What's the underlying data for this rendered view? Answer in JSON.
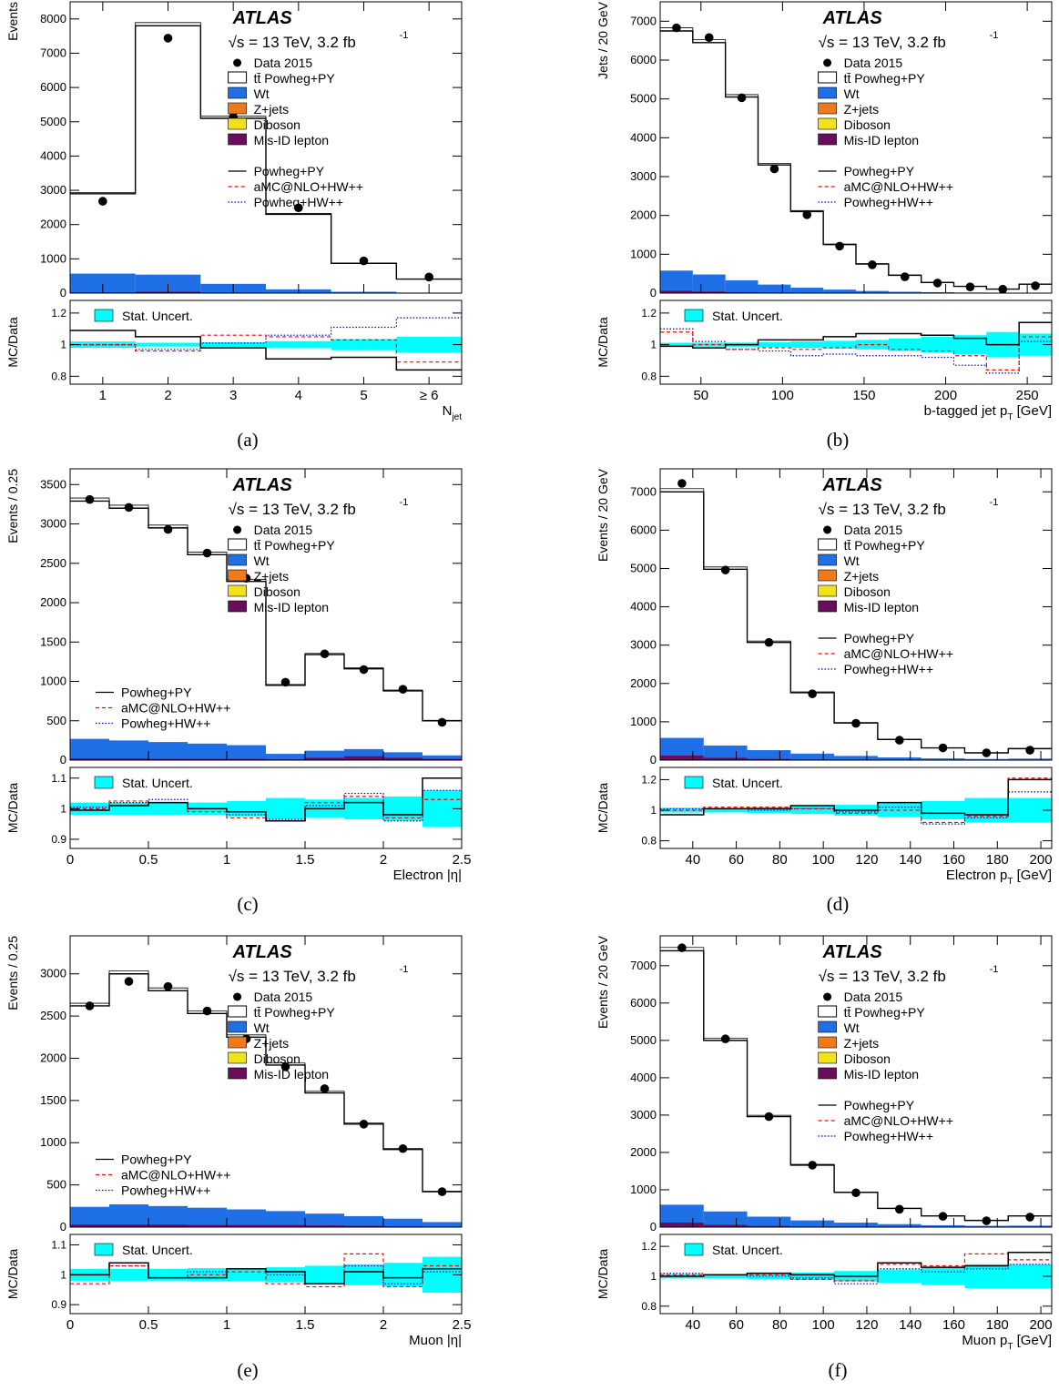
{
  "figure": {
    "atlas_label": "ATLAS",
    "energy_label": "√s = 13 TeV, 3.2 fb",
    "lumi_superscript": "-1",
    "legend": {
      "data": "Data 2015",
      "ttbar": "tt̄ Powheg+PY",
      "wt": "Wt",
      "zjets": "Z+jets",
      "diboson": "Diboson",
      "misid": "Mis-ID lepton",
      "powheg_py": "Powheg+PY",
      "amcnlo": "aMC@NLO+HW++",
      "powheg_hw": "Powheg+HW++",
      "stat": "Stat. Uncert."
    },
    "ratio_ylabel": "MC/Data",
    "colors": {
      "wt": "#1f6fe6",
      "zjets": "#f07a1a",
      "diboson": "#f2e21a",
      "misid": "#6a0d5a",
      "stat": "#00ffff",
      "amcnlo": "#ff0000",
      "powheg_hw": "#0000dd"
    }
  },
  "chart_data": [
    {
      "type": "bar",
      "panel": "a",
      "caption": "(a)",
      "ylabel": "Events",
      "xlabel_main": "N",
      "xlabel_sub": "jet",
      "edges": [
        0.5,
        1.5,
        2.5,
        3.5,
        4.5,
        5.5,
        6.5
      ],
      "xlim": [
        0.5,
        6.5
      ],
      "ylim": [
        0,
        8500
      ],
      "yticks": [
        0,
        1000,
        2000,
        3000,
        4000,
        5000,
        6000,
        7000,
        8000
      ],
      "xticks": [
        {
          "v": 1,
          "l": "1"
        },
        {
          "v": 2,
          "l": "2"
        },
        {
          "v": 3,
          "l": "3"
        },
        {
          "v": 4,
          "l": "4"
        },
        {
          "v": 5,
          "l": "5"
        },
        {
          "v": 6,
          "l": "≥ 6"
        }
      ],
      "data": [
        2680,
        7440,
        5140,
        2490,
        940,
        470
      ],
      "ttbar": [
        2900,
        7800,
        5100,
        2300,
        870,
        410
      ],
      "wt": [
        570,
        540,
        270,
        110,
        40,
        15
      ],
      "misid": [
        20,
        40,
        15,
        10,
        4,
        2
      ],
      "ratio_ylim": [
        0.75,
        1.28
      ],
      "ratio_yticks": [
        0.8,
        1,
        1.2
      ],
      "ratio_powheg_py": [
        1.09,
        1.05,
        0.98,
        0.91,
        0.92,
        0.84
      ],
      "ratio_amcnlo": [
        1.0,
        0.96,
        1.06,
        1.05,
        1.03,
        0.89
      ],
      "ratio_powheg_hw": [
        1.0,
        0.97,
        1.01,
        1.06,
        1.11,
        1.17
      ],
      "stat_unc": [
        0.02,
        0.012,
        0.015,
        0.022,
        0.035,
        0.05
      ],
      "legend_layout": "stacked"
    },
    {
      "type": "bar",
      "panel": "b",
      "caption": "(b)",
      "ylabel": "Jets / 20 GeV",
      "xlabel_main": "b-tagged jet p",
      "xlabel_sub": "T",
      "xlabel_tail": " [GeV]",
      "edges": [
        25,
        45,
        65,
        85,
        105,
        125,
        145,
        165,
        185,
        205,
        225,
        245,
        265
      ],
      "xlim": [
        25,
        265
      ],
      "ylim": [
        0,
        7500
      ],
      "yticks": [
        0,
        1000,
        2000,
        3000,
        4000,
        5000,
        6000,
        7000
      ],
      "xticks": [
        {
          "v": 50,
          "l": "50"
        },
        {
          "v": 100,
          "l": "100"
        },
        {
          "v": 150,
          "l": "150"
        },
        {
          "v": 200,
          "l": "200"
        },
        {
          "v": 250,
          "l": "250"
        }
      ],
      "data": [
        6830,
        6580,
        5030,
        3200,
        2020,
        1210,
        730,
        420,
        260,
        160,
        100,
        190
      ],
      "ttbar": [
        6750,
        6450,
        5050,
        3300,
        2100,
        1250,
        750,
        460,
        275,
        175,
        105,
        230
      ],
      "wt": [
        580,
        480,
        330,
        220,
        140,
        90,
        55,
        35,
        25,
        15,
        10,
        8
      ],
      "misid": [
        60,
        40,
        25,
        15,
        10,
        6,
        4,
        3,
        2,
        1,
        1,
        1
      ],
      "ratio_ylim": [
        0.75,
        1.28
      ],
      "ratio_yticks": [
        0.8,
        1,
        1.2
      ],
      "ratio_powheg_py": [
        0.99,
        0.98,
        1.0,
        1.03,
        1.03,
        1.05,
        1.07,
        1.07,
        1.06,
        1.04,
        1.0,
        1.14
      ],
      "ratio_amcnlo": [
        1.08,
        1.0,
        0.97,
        0.98,
        0.97,
        0.98,
        1.0,
        0.97,
        0.96,
        0.93,
        0.84,
        1.05
      ],
      "ratio_powheg_hw": [
        1.1,
        1.02,
        0.97,
        0.96,
        0.93,
        0.94,
        0.93,
        0.93,
        0.92,
        0.87,
        0.82,
        1.02
      ],
      "stat_unc": [
        0.012,
        0.012,
        0.013,
        0.016,
        0.02,
        0.024,
        0.03,
        0.04,
        0.05,
        0.06,
        0.08,
        0.07
      ],
      "legend_layout": "stacked"
    },
    {
      "type": "bar",
      "panel": "c",
      "caption": "(c)",
      "ylabel": "Events / 0.25",
      "xlabel_main": "Electron |η|",
      "edges": [
        0,
        0.25,
        0.5,
        0.75,
        1.0,
        1.25,
        1.5,
        1.75,
        2.0,
        2.25,
        2.5
      ],
      "xlim": [
        0,
        2.5
      ],
      "ylim": [
        0,
        3700
      ],
      "yticks": [
        0,
        500,
        1000,
        1500,
        2000,
        2500,
        3000,
        3500
      ],
      "xticks": [
        {
          "v": 0,
          "l": "0"
        },
        {
          "v": 0.5,
          "l": "0.5"
        },
        {
          "v": 1,
          "l": "1"
        },
        {
          "v": 1.5,
          "l": "1.5"
        },
        {
          "v": 2,
          "l": "2"
        },
        {
          "v": 2.5,
          "l": "2.5"
        }
      ],
      "data": [
        3310,
        3210,
        2930,
        2630,
        2310,
        990,
        1350,
        1150,
        900,
        480
      ],
      "ttbar": [
        3290,
        3200,
        2950,
        2610,
        2270,
        950,
        1340,
        1160,
        880,
        500
      ],
      "wt": [
        270,
        250,
        230,
        210,
        190,
        80,
        120,
        140,
        100,
        60
      ],
      "misid": [
        20,
        20,
        15,
        15,
        15,
        10,
        30,
        50,
        30,
        15
      ],
      "ratio_ylim": [
        0.87,
        1.135
      ],
      "ratio_yticks": [
        0.9,
        1,
        1.1
      ],
      "ratio_powheg_py": [
        0.995,
        1.01,
        1.02,
        1.0,
        0.99,
        0.96,
        1.0,
        1.02,
        0.98,
        1.1
      ],
      "ratio_amcnlo": [
        1.0,
        1.025,
        1.02,
        0.99,
        0.97,
        0.96,
        1.02,
        1.04,
        0.97,
        1.03
      ],
      "ratio_powheg_hw": [
        1.005,
        1.02,
        1.03,
        1.0,
        0.98,
        0.965,
        1.01,
        1.05,
        0.96,
        1.06
      ],
      "stat_unc": [
        0.02,
        0.02,
        0.02,
        0.02,
        0.025,
        0.035,
        0.03,
        0.035,
        0.04,
        0.06
      ],
      "legend_layout": "split"
    },
    {
      "type": "bar",
      "panel": "d",
      "caption": "(d)",
      "ylabel": "Events / 20 GeV",
      "xlabel_main": "Electron p",
      "xlabel_sub": "T",
      "xlabel_tail": " [GeV]",
      "edges": [
        25,
        45,
        65,
        85,
        105,
        125,
        145,
        165,
        185,
        205
      ],
      "xlim": [
        25,
        205
      ],
      "ylim": [
        0,
        7600
      ],
      "yticks": [
        0,
        1000,
        2000,
        3000,
        4000,
        5000,
        6000,
        7000
      ],
      "xticks": [
        {
          "v": 40,
          "l": "40"
        },
        {
          "v": 60,
          "l": "60"
        },
        {
          "v": 80,
          "l": "80"
        },
        {
          "v": 100,
          "l": "100"
        },
        {
          "v": 120,
          "l": "120"
        },
        {
          "v": 140,
          "l": "140"
        },
        {
          "v": 160,
          "l": "160"
        },
        {
          "v": 180,
          "l": "180"
        },
        {
          "v": 200,
          "l": "200"
        }
      ],
      "data": [
        7220,
        4960,
        3070,
        1730,
        960,
        520,
        320,
        190,
        260
      ],
      "ttbar": [
        7000,
        4980,
        3070,
        1760,
        970,
        540,
        320,
        190,
        300
      ],
      "wt": [
        580,
        380,
        260,
        170,
        110,
        70,
        45,
        30,
        40
      ],
      "misid": [
        120,
        60,
        30,
        15,
        8,
        5,
        3,
        2,
        2
      ],
      "ratio_ylim": [
        0.75,
        1.28
      ],
      "ratio_yticks": [
        0.8,
        1,
        1.2
      ],
      "ratio_powheg_py": [
        0.97,
        1.01,
        1.01,
        1.03,
        1.0,
        1.05,
        0.98,
        0.97,
        1.2
      ],
      "ratio_amcnlo": [
        1.0,
        1.02,
        1.02,
        1.01,
        0.98,
        1.0,
        0.92,
        0.96,
        1.21
      ],
      "ratio_powheg_hw": [
        1.01,
        1.01,
        1.0,
        1.01,
        0.99,
        1.02,
        0.91,
        0.95,
        1.12
      ],
      "stat_unc": [
        0.015,
        0.015,
        0.02,
        0.025,
        0.035,
        0.045,
        0.06,
        0.08,
        0.08
      ],
      "legend_layout": "stacked"
    },
    {
      "type": "bar",
      "panel": "e",
      "caption": "(e)",
      "ylabel": "Events / 0.25",
      "xlabel_main": "Muon |η|",
      "edges": [
        0,
        0.25,
        0.5,
        0.75,
        1.0,
        1.25,
        1.5,
        1.75,
        2.0,
        2.25,
        2.5
      ],
      "xlim": [
        0,
        2.5
      ],
      "ylim": [
        0,
        3450
      ],
      "yticks": [
        0,
        500,
        1000,
        1500,
        2000,
        2500,
        3000
      ],
      "xticks": [
        {
          "v": 0,
          "l": "0"
        },
        {
          "v": 0.5,
          "l": "0.5"
        },
        {
          "v": 1,
          "l": "1"
        },
        {
          "v": 1.5,
          "l": "1.5"
        },
        {
          "v": 2,
          "l": "2"
        },
        {
          "v": 2.5,
          "l": "2.5"
        }
      ],
      "data": [
        2620,
        2910,
        2850,
        2560,
        2230,
        1900,
        1640,
        1220,
        930,
        420
      ],
      "ttbar": [
        2620,
        3000,
        2800,
        2530,
        2250,
        1920,
        1590,
        1220,
        920,
        420
      ],
      "wt": [
        240,
        270,
        250,
        230,
        210,
        190,
        160,
        130,
        100,
        60
      ],
      "misid": [
        30,
        30,
        30,
        25,
        25,
        25,
        20,
        15,
        10,
        5
      ],
      "ratio_ylim": [
        0.87,
        1.135
      ],
      "ratio_yticks": [
        0.9,
        1,
        1.1
      ],
      "ratio_powheg_py": [
        1.0,
        1.04,
        0.99,
        0.99,
        1.02,
        1.01,
        0.97,
        1.01,
        0.99,
        1.02
      ],
      "ratio_amcnlo": [
        0.97,
        1.03,
        0.99,
        1.0,
        1.01,
        0.97,
        0.96,
        1.07,
        0.96,
        1.03
      ],
      "ratio_powheg_hw": [
        1.0,
        1.03,
        0.99,
        1.01,
        1.02,
        1.0,
        0.97,
        1.03,
        0.97,
        1.01
      ],
      "stat_unc": [
        0.02,
        0.02,
        0.02,
        0.022,
        0.022,
        0.025,
        0.03,
        0.035,
        0.04,
        0.06
      ],
      "legend_layout": "split"
    },
    {
      "type": "bar",
      "panel": "f",
      "caption": "(f)",
      "ylabel": "Events / 20 GeV",
      "xlabel_main": "Muon p",
      "xlabel_sub": "T",
      "xlabel_tail": " [GeV]",
      "edges": [
        25,
        45,
        65,
        85,
        105,
        125,
        145,
        165,
        185,
        205
      ],
      "xlim": [
        25,
        205
      ],
      "ylim": [
        0,
        7800
      ],
      "yticks": [
        0,
        1000,
        2000,
        3000,
        4000,
        5000,
        6000,
        7000
      ],
      "xticks": [
        {
          "v": 40,
          "l": "40"
        },
        {
          "v": 60,
          "l": "60"
        },
        {
          "v": 80,
          "l": "80"
        },
        {
          "v": 100,
          "l": "100"
        },
        {
          "v": 120,
          "l": "120"
        },
        {
          "v": 140,
          "l": "140"
        },
        {
          "v": 160,
          "l": "160"
        },
        {
          "v": 180,
          "l": "180"
        },
        {
          "v": 200,
          "l": "200"
        }
      ],
      "data": [
        7480,
        5040,
        2960,
        1660,
        920,
        480,
        290,
        170,
        270
      ],
      "ttbar": [
        7400,
        5000,
        2960,
        1660,
        930,
        500,
        300,
        180,
        300
      ],
      "wt": [
        600,
        420,
        280,
        180,
        120,
        80,
        50,
        35,
        40
      ],
      "misid": [
        120,
        60,
        30,
        15,
        8,
        5,
        3,
        2,
        2
      ],
      "ratio_ylim": [
        0.75,
        1.28
      ],
      "ratio_yticks": [
        0.8,
        1,
        1.2
      ],
      "ratio_powheg_py": [
        1.0,
        1.01,
        1.02,
        1.01,
        1.0,
        1.09,
        1.06,
        1.07,
        1.16
      ],
      "ratio_amcnlo": [
        1.01,
        1.01,
        1.01,
        0.98,
        0.97,
        1.08,
        1.07,
        1.15,
        1.11
      ],
      "ratio_powheg_hw": [
        1.02,
        1.01,
        1.0,
        0.99,
        0.95,
        1.05,
        1.03,
        1.05,
        1.08
      ],
      "stat_unc": [
        0.015,
        0.015,
        0.02,
        0.025,
        0.035,
        0.045,
        0.06,
        0.08,
        0.08
      ],
      "legend_layout": "stacked"
    }
  ]
}
